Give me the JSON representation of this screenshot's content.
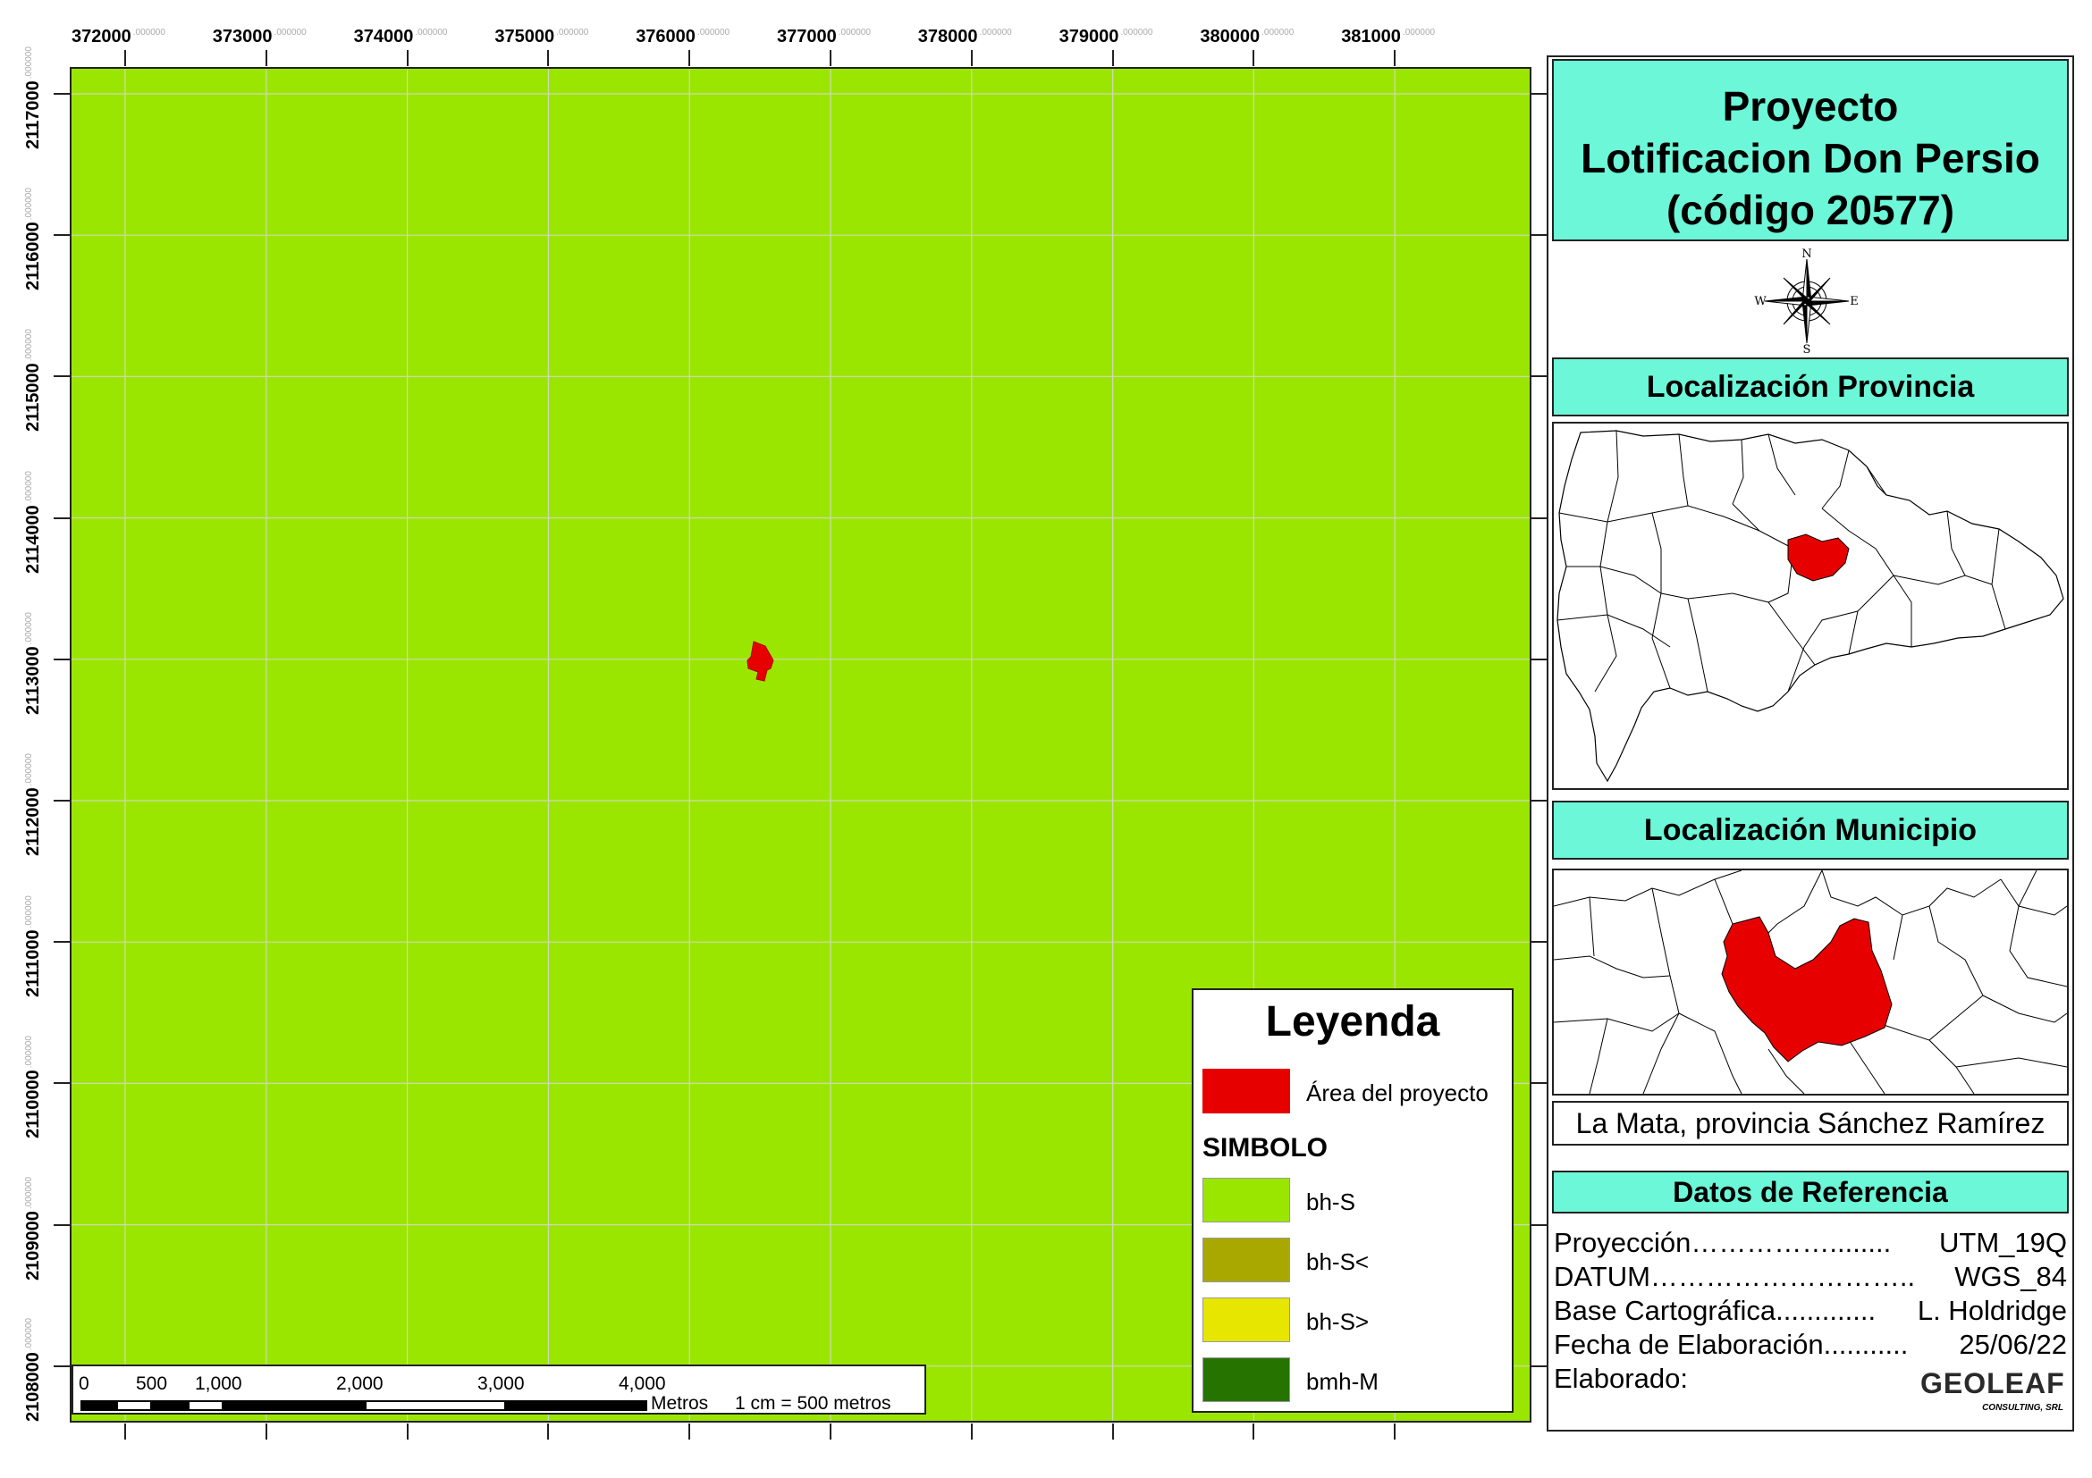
{
  "map": {
    "background_color": "#9be600",
    "x_ticks": [
      "372000",
      "373000",
      "374000",
      "375000",
      "376000",
      "377000",
      "378000",
      "379000",
      "380000",
      "381000"
    ],
    "y_ticks": [
      "2117000",
      "2116000",
      "2115000",
      "2114000",
      "2113000",
      "2112000",
      "2111000",
      "2110000",
      "2109000",
      "2108000"
    ],
    "tick_decimals": ".000000",
    "project_area_color": "#e60000"
  },
  "legend": {
    "title": "Leyenda",
    "project_label": "Área del proyecto",
    "symbol_heading": "SIMBOLO",
    "items": [
      {
        "label": "bh-S",
        "color": "#9be600"
      },
      {
        "label": "bh-S<",
        "color": "#a8a800"
      },
      {
        "label": "bh-S>",
        "color": "#e6e600"
      },
      {
        "label": "bmh-M",
        "color": "#267300"
      }
    ]
  },
  "scale": {
    "labels": [
      "0",
      "500",
      "1,000",
      "2,000",
      "3,000",
      "4,000"
    ],
    "unit": "Metros",
    "ratio": "1 cm = 500 metros"
  },
  "panel": {
    "title_lines": [
      "Proyecto",
      "Lotificacion Don Persio",
      "(código 20577)"
    ],
    "compass": {
      "n": "N",
      "s": "S",
      "e": "E",
      "w": "W"
    },
    "province_title": "Localización Provincia",
    "municipality_title": "Localización Municipio",
    "place": "La Mata, provincia Sánchez Ramírez",
    "reference_title": "Datos de Referencia",
    "reference_rows": [
      {
        "key": "Proyección……………........",
        "value": "UTM_19Q"
      },
      {
        "key": "DATUM………………………..",
        "value": "WGS_84"
      },
      {
        "key": "Base Cartográfica.............",
        "value": "L. Holdridge"
      },
      {
        "key": "Fecha de Elaboración...........",
        "value": "25/06/22"
      },
      {
        "key": "Elaborado:",
        "value": ""
      }
    ],
    "logo_main": "GEOLEAF",
    "logo_sub": "CONSULTING, SRL",
    "highlight_color": "#e60000",
    "header_color": "#6cf7d8"
  }
}
